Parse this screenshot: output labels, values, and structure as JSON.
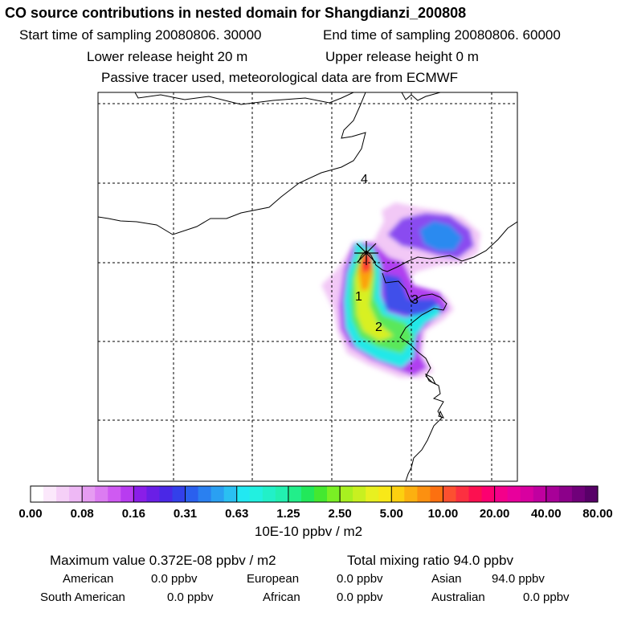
{
  "header": {
    "title": "CO  source contributions in nested domain for Shangdianzi_200808",
    "start_label": "Start time of sampling 20080806. 30000",
    "end_label": "End time of sampling 20080806. 60000",
    "lower_height": "Lower release height   20 m",
    "upper_height": "Upper release height    0 m",
    "note": "Passive tracer used, meteorological data are from ECMWF"
  },
  "map": {
    "source_labels": [
      "1",
      "2",
      "3",
      "4"
    ],
    "colors": {
      "background": "#ffffff",
      "coastline": "#000000",
      "grid": "#000000"
    }
  },
  "colorbar": {
    "tick_labels": [
      "0.00",
      "0.08",
      "0.16",
      "0.31",
      "0.63",
      "1.25",
      "2.50",
      "5.00",
      "10.00",
      "20.00",
      "40.00",
      "80.00"
    ],
    "colors": [
      "#ffffff",
      "#fbe8fb",
      "#f5d0f7",
      "#eeb8f5",
      "#e69cf2",
      "#dc7cf2",
      "#cf5af2",
      "#b83cf0",
      "#8a1ee8",
      "#6a1fe6",
      "#4a28e6",
      "#3340ea",
      "#2a60ee",
      "#2a80f0",
      "#2aa0f2",
      "#2ac0f2",
      "#22e8f2",
      "#22f0e0",
      "#22f0c8",
      "#22f0b0",
      "#22ee8a",
      "#22e85a",
      "#44e830",
      "#7af024",
      "#a8f020",
      "#c8f020",
      "#e8f020",
      "#f8e818",
      "#fcd010",
      "#fcb010",
      "#fc9010",
      "#fc7010",
      "#fc5030",
      "#fc3040",
      "#fc1050",
      "#fc0070",
      "#f4008a",
      "#e8009c",
      "#d800a0",
      "#c000a0",
      "#a80098",
      "#8c008a",
      "#70007a",
      "#580068"
    ],
    "unit": "10E-10 ppbv / m2"
  },
  "summary": {
    "max_value": "Maximum value  0.372E-08 ppbv / m2",
    "total": "Total mixing ratio       94.0 ppbv",
    "regions": [
      {
        "name": "American",
        "value": "0.0 ppbv"
      },
      {
        "name": "European",
        "value": "0.0 ppbv"
      },
      {
        "name": "Asian",
        "value": "94.0 ppbv"
      },
      {
        "name": "South American",
        "value": "0.0 ppbv"
      },
      {
        "name": "African",
        "value": "0.0 ppbv"
      },
      {
        "name": "Australian",
        "value": "0.0 ppbv"
      }
    ]
  }
}
